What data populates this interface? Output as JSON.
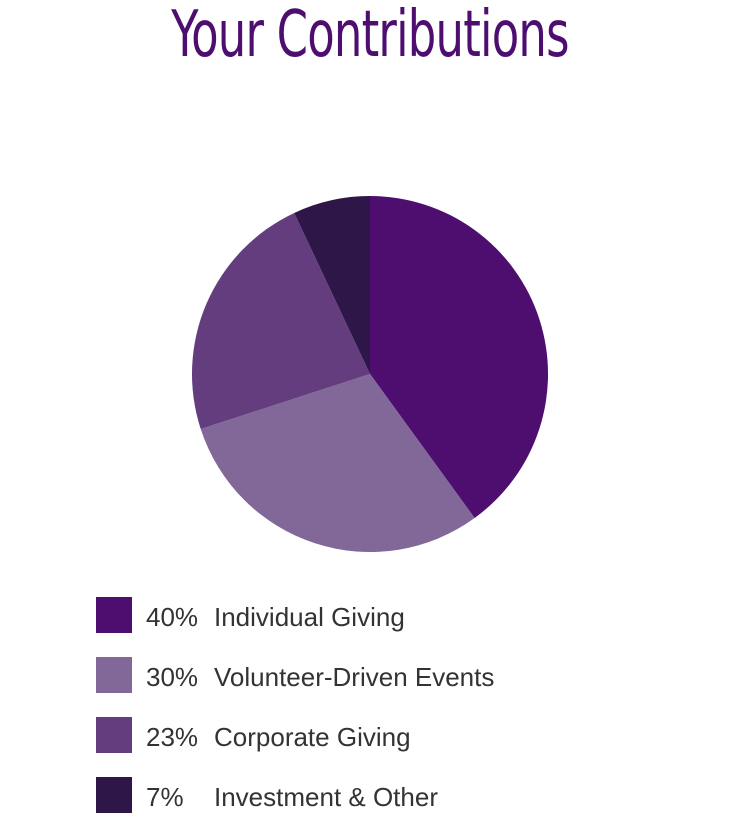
{
  "title": "Your Contributions",
  "chart_data": {
    "type": "pie",
    "title": "Your Contributions",
    "slices": [
      {
        "label": "Individual Giving",
        "percent_label": "40%",
        "value": 40,
        "color": "#4d0e70"
      },
      {
        "label": "Volunteer-Driven Events",
        "percent_label": "30%",
        "value": 30,
        "color": "#826899"
      },
      {
        "label": "Corporate Giving",
        "percent_label": "23%",
        "value": 23,
        "color": "#643d7f"
      },
      {
        "label": "Investment & Other",
        "percent_label": "7%",
        "value": 7,
        "color": "#2e1648"
      }
    ],
    "legend": "bottom-left"
  }
}
